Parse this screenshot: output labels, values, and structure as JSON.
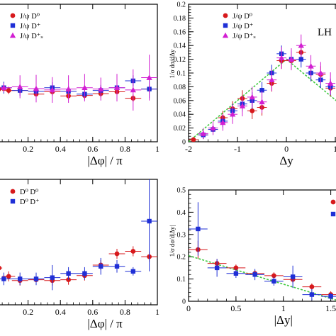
{
  "colors": {
    "red": "#d7191c",
    "blue": "#1f2fd6",
    "magenta": "#d21fd2",
    "fit": "#3fc93f",
    "axis": "#000000"
  },
  "chart_data": [
    {
      "id": "p1",
      "type": "scatter",
      "xlabel": "|Δφ| / π",
      "ylabel": "",
      "xlim": [
        0,
        1
      ],
      "ylim": [
        0,
        0.3
      ],
      "xticks": [
        0.2,
        0.4,
        0.6,
        0.8,
        1
      ],
      "xticklabels": [
        "0.2",
        "0.4",
        "0.6",
        "0.8",
        "1"
      ],
      "yticks": [],
      "yticklabels": [],
      "legend": [
        "J/ψ D⁰",
        "J/ψ D⁺",
        "J/ψ D⁺ₛ"
      ],
      "series": [
        {
          "name": "J/ψ D⁰",
          "color": "red",
          "marker": "circle",
          "x": [
            0.02,
            0.08,
            0.15,
            0.25,
            0.35,
            0.45,
            0.55,
            0.65,
            0.75,
            0.85,
            0.95
          ],
          "y": [
            0.115,
            0.112,
            0.112,
            0.104,
            0.109,
            0.1,
            0.101,
            0.105,
            0.109,
            0.095,
            0.115
          ],
          "yerr": [
            0.008,
            0.008,
            0.008,
            0.008,
            0.008,
            0.008,
            0.008,
            0.008,
            0.008,
            0.008,
            0.008
          ],
          "xerr": [
            0.02,
            0.04,
            0.05,
            0.05,
            0.05,
            0.05,
            0.05,
            0.05,
            0.05,
            0.05,
            0.05
          ]
        },
        {
          "name": "J/ψ D⁺",
          "color": "blue",
          "marker": "square",
          "x": [
            0.05,
            0.15,
            0.25,
            0.35,
            0.45,
            0.55,
            0.65,
            0.75,
            0.85,
            0.95
          ],
          "y": [
            0.118,
            0.112,
            0.11,
            0.118,
            0.11,
            0.104,
            0.112,
            0.118,
            0.133,
            0.115
          ],
          "yerr": [
            0.013,
            0.012,
            0.012,
            0.012,
            0.012,
            0.012,
            0.012,
            0.012,
            0.012,
            0.02
          ],
          "xerr": [
            0.05,
            0.05,
            0.05,
            0.05,
            0.05,
            0.05,
            0.05,
            0.05,
            0.05,
            0.05
          ]
        },
        {
          "name": "J/ψ D⁺ₛ",
          "color": "magenta",
          "marker": "triangle",
          "x": [
            0.05,
            0.15,
            0.25,
            0.35,
            0.45,
            0.55,
            0.65,
            0.75,
            0.85,
            0.95
          ],
          "y": [
            0.118,
            0.12,
            0.116,
            0.113,
            0.115,
            0.118,
            0.115,
            0.118,
            0.113,
            0.14
          ],
          "yerr": [
            0.01,
            0.025,
            0.03,
            0.028,
            0.03,
            0.03,
            0.025,
            0.03,
            0.045,
            0.05
          ],
          "xerr": [
            0.05,
            0.05,
            0.05,
            0.05,
            0.05,
            0.05,
            0.05,
            0.05,
            0.05,
            0.05
          ]
        }
      ]
    },
    {
      "id": "p2",
      "type": "scatter",
      "xlabel": "Δy",
      "ylabel": "1/σ dσ/dΔy",
      "xlim": [
        -2,
        1.1
      ],
      "ylim": [
        0,
        0.2
      ],
      "xticks": [
        -2,
        -1,
        0,
        1
      ],
      "xticklabels": [
        "-2",
        "-1",
        "0",
        "1"
      ],
      "yticks": [
        0,
        0.02,
        0.04,
        0.06,
        0.08,
        0.1,
        0.12,
        0.14,
        0.16,
        0.18,
        0.2
      ],
      "yticklabels": [
        "0",
        "0.02",
        "0.04",
        "0.06",
        "0.08",
        "0.1",
        "0.12",
        "0.14",
        "0.16",
        "0.18",
        "0.2"
      ],
      "legend": [
        "J/ψ D⁰",
        "J/ψ D⁺",
        "J/ψ D⁺ₛ"
      ],
      "label": "LH",
      "fit": {
        "x": [
          -2,
          0,
          1.1
        ],
        "y": [
          0,
          0.12,
          0.055
        ]
      },
      "series": [
        {
          "name": "J/ψ D⁰",
          "color": "red",
          "marker": "circle",
          "x": [
            -1.9,
            -1.7,
            -1.5,
            -1.3,
            -1.1,
            -0.9,
            -0.7,
            -0.5,
            -0.3,
            -0.1,
            0.1,
            0.3,
            0.5,
            0.7,
            0.9
          ],
          "y": [
            0.003,
            0.01,
            0.018,
            0.035,
            0.048,
            0.063,
            0.045,
            0.05,
            0.085,
            0.118,
            0.118,
            0.13,
            0.1,
            0.098,
            0.078
          ],
          "yerr": [
            0.004,
            0.006,
            0.008,
            0.01,
            0.011,
            0.012,
            0.012,
            0.012,
            0.012,
            0.012,
            0.012,
            0.012,
            0.012,
            0.012,
            0.012
          ],
          "xerr": [
            0.1,
            0.1,
            0.1,
            0.1,
            0.1,
            0.1,
            0.1,
            0.1,
            0.1,
            0.1,
            0.1,
            0.1,
            0.1,
            0.1,
            0.1
          ]
        },
        {
          "name": "J/ψ D⁺",
          "color": "blue",
          "marker": "square",
          "x": [
            -1.7,
            -1.5,
            -1.3,
            -1.1,
            -0.9,
            -0.7,
            -0.5,
            -0.3,
            -0.1,
            0.1,
            0.3,
            0.5,
            0.7,
            0.9
          ],
          "y": [
            0.01,
            0.018,
            0.03,
            0.045,
            0.055,
            0.06,
            0.075,
            0.1,
            0.128,
            0.12,
            0.12,
            0.1,
            0.09,
            0.08
          ],
          "yerr": [
            0.006,
            0.008,
            0.009,
            0.01,
            0.011,
            0.012,
            0.012,
            0.012,
            0.012,
            0.012,
            0.012,
            0.012,
            0.012,
            0.012
          ],
          "xerr": [
            0.1,
            0.1,
            0.1,
            0.1,
            0.1,
            0.1,
            0.1,
            0.1,
            0.1,
            0.1,
            0.1,
            0.1,
            0.1,
            0.1
          ]
        },
        {
          "name": "J/ψ D⁺ₛ",
          "color": "magenta",
          "marker": "triangle",
          "x": [
            -1.7,
            -1.5,
            -1.3,
            -1.1,
            -0.9,
            -0.7,
            -0.5,
            -0.3,
            -0.1,
            0.1,
            0.3,
            0.5,
            0.7,
            0.9
          ],
          "y": [
            0.012,
            0.02,
            0.028,
            0.04,
            0.052,
            0.065,
            0.058,
            0.09,
            0.122,
            0.12,
            0.14,
            0.11,
            0.1,
            0.085
          ],
          "yerr": [
            0.008,
            0.01,
            0.012,
            0.014,
            0.015,
            0.015,
            0.016,
            0.016,
            0.016,
            0.016,
            0.016,
            0.016,
            0.016,
            0.016
          ],
          "xerr": [
            0.1,
            0.1,
            0.1,
            0.1,
            0.1,
            0.1,
            0.1,
            0.1,
            0.1,
            0.1,
            0.1,
            0.1,
            0.1,
            0.1
          ]
        }
      ]
    },
    {
      "id": "p3",
      "type": "scatter",
      "xlabel": "|Δφ| / π",
      "ylabel": "",
      "xlim": [
        0,
        1
      ],
      "ylim": [
        0,
        0.3
      ],
      "xticks": [
        0.2,
        0.4,
        0.6,
        0.8,
        1
      ],
      "xticklabels": [
        "0.2",
        "0.4",
        "0.6",
        "0.8",
        "1"
      ],
      "yticks": [],
      "yticklabels": [],
      "legend": [
        "D⁰ D⁰",
        "D⁰ D⁺"
      ],
      "series": [
        {
          "name": "D⁰ D⁰",
          "color": "red",
          "marker": "circle",
          "x": [
            0.02,
            0.08,
            0.15,
            0.25,
            0.35,
            0.45,
            0.55,
            0.65,
            0.75,
            0.85,
            0.95
          ],
          "y": [
            0.088,
            0.068,
            0.058,
            0.06,
            0.058,
            0.06,
            0.07,
            0.095,
            0.122,
            0.128,
            0.115
          ],
          "yerr": [
            0.012,
            0.012,
            0.012,
            0.012,
            0.012,
            0.012,
            0.012,
            0.012,
            0.012,
            0.012,
            0.012
          ],
          "xerr": [
            0.02,
            0.04,
            0.05,
            0.05,
            0.05,
            0.05,
            0.05,
            0.05,
            0.05,
            0.05,
            0.05
          ]
        },
        {
          "name": "D⁰ D⁺",
          "color": "blue",
          "marker": "square",
          "x": [
            0.05,
            0.15,
            0.25,
            0.35,
            0.45,
            0.55,
            0.65,
            0.75,
            0.85,
            0.95
          ],
          "y": [
            0.062,
            0.062,
            0.062,
            0.065,
            0.075,
            0.075,
            0.092,
            0.092,
            0.08,
            0.2
          ],
          "yerr": [
            0.015,
            0.015,
            0.015,
            0.03,
            0.015,
            0.015,
            0.02,
            0.015,
            0.01,
            0.12
          ],
          "xerr": [
            0.05,
            0.05,
            0.05,
            0.05,
            0.05,
            0.05,
            0.05,
            0.05,
            0.05,
            0.05
          ]
        }
      ]
    },
    {
      "id": "p4",
      "type": "scatter",
      "xlabel": "|Δy|",
      "ylabel": "1/σ dσ/d|Δy|",
      "xlim": [
        0,
        1.6
      ],
      "ylim": [
        0,
        0.5
      ],
      "xticks": [
        0,
        0.5,
        1,
        1.5
      ],
      "xticklabels": [
        "0",
        "0.5",
        "1",
        "1.5"
      ],
      "yticks": [
        0,
        0.1,
        0.2,
        0.3,
        0.4,
        0.5
      ],
      "yticklabels": [
        "0",
        "0.1",
        "0.2",
        "0.3",
        "0.4",
        "0.5"
      ],
      "legend": [
        "",
        ""
      ],
      "fit": {
        "x": [
          0,
          1.6
        ],
        "y": [
          0.205,
          0.0
        ]
      },
      "series": [
        {
          "name": "",
          "color": "red",
          "marker": "circle",
          "x": [
            0.1,
            0.3,
            0.5,
            0.7,
            0.9,
            1.1,
            1.3,
            1.5
          ],
          "y": [
            0.232,
            0.17,
            0.15,
            0.125,
            0.115,
            0.098,
            0.065,
            0.03
          ],
          "yerr": [
            0.04,
            0.02,
            0.015,
            0.015,
            0.015,
            0.015,
            0.015,
            0.015
          ],
          "xerr": [
            0.1,
            0.1,
            0.1,
            0.1,
            0.1,
            0.1,
            0.1,
            0.1
          ]
        },
        {
          "name": "",
          "color": "blue",
          "marker": "square",
          "x": [
            0.1,
            0.3,
            0.5,
            0.7,
            0.9,
            1.1,
            1.3,
            1.5
          ],
          "y": [
            0.325,
            0.15,
            0.125,
            0.12,
            0.09,
            0.11,
            0.03,
            0.022
          ],
          "yerr": [
            0.12,
            0.04,
            0.02,
            0.025,
            0.02,
            0.05,
            0.025,
            0.015
          ],
          "xerr": [
            0.1,
            0.1,
            0.1,
            0.1,
            0.1,
            0.1,
            0.1,
            0.1
          ]
        }
      ]
    }
  ]
}
